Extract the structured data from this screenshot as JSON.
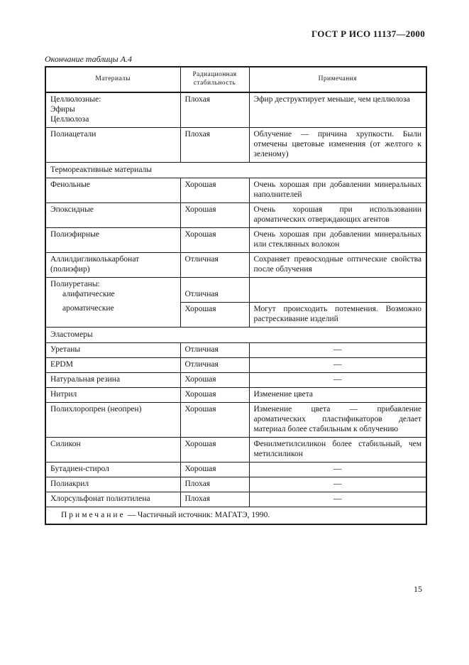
{
  "page": {
    "header": "ГОСТ Р ИСО 11137—2000",
    "caption": "Окончание таблицы А.4",
    "page_number": "15"
  },
  "table": {
    "columns": [
      "Материалы",
      "Радиационная стабильность",
      "Примечания"
    ],
    "rows": [
      {
        "type": "data",
        "material": [
          "Целлюлозные:",
          "Эфиры",
          "Целлюлоза"
        ],
        "stability": "Плохая",
        "remark": "Эфир деструктирует меньше, чем целлюлоза"
      },
      {
        "type": "data",
        "material": [
          "Полиацетали"
        ],
        "stability": "Плохая",
        "remark": "Облучение — причина хрупкости. Были отмечены цветовые изменения (от желтого к зеленому)"
      },
      {
        "type": "section",
        "label": "Термореактивные материалы"
      },
      {
        "type": "data",
        "material": [
          "Фенольные"
        ],
        "stability": "Хорошая",
        "remark": "Очень хорошая при добавлении минеральных наполнителей"
      },
      {
        "type": "data",
        "material": [
          "Эпоксидные"
        ],
        "stability": "Хорошая",
        "remark": "Очень хорошая при использовании ароматических отверждающих агентов"
      },
      {
        "type": "data",
        "material": [
          "Полиэфирные"
        ],
        "stability": "Хорошая",
        "remark": "Очень хорошая при добавлении минеральных или стеклянных волокон"
      },
      {
        "type": "data",
        "material": [
          "Аллилдигликолькарбонат",
          "(полиэфир)"
        ],
        "stability": "Отличная",
        "remark": "Сохраняет превосходные оптические свойства после облучения"
      },
      {
        "type": "group",
        "label": "Полиуретаны:",
        "subrows": [
          {
            "material": "алифатические",
            "stability": "Отличная",
            "remark": ""
          },
          {
            "material": "ароматические",
            "stability": "Хорошая",
            "remark": "Могут происходить потемнения. Возможно растрескивание изделий"
          }
        ]
      },
      {
        "type": "section",
        "label": "Эластомеры"
      },
      {
        "type": "data",
        "material": [
          "Уретаны"
        ],
        "stability": "Отличная",
        "remark": "—"
      },
      {
        "type": "data",
        "material": [
          "EPDM"
        ],
        "stability": "Отличная",
        "remark": "—"
      },
      {
        "type": "data",
        "material": [
          "Натуральная резина"
        ],
        "stability": "Хорошая",
        "remark": "—"
      },
      {
        "type": "data",
        "material": [
          "Нитрил"
        ],
        "stability": "Хорошая",
        "remark": "Изменение цвета"
      },
      {
        "type": "data",
        "material": [
          "Полихлоропрен (неопрен)"
        ],
        "stability": "Хорошая",
        "remark": "Изменение цвета — прибавление ароматических пластификаторов делает материал более стабильным к облучению"
      },
      {
        "type": "data",
        "material": [
          "Силикон"
        ],
        "stability": "Хорошая",
        "remark": "Фенилметилсиликон более стабильный, чем метилсиликон"
      },
      {
        "type": "data",
        "material": [
          "Бутадиен-стирол"
        ],
        "stability": "Хорошая",
        "remark": "—"
      },
      {
        "type": "data",
        "material": [
          "Полиакрил"
        ],
        "stability": "Плохая",
        "remark": "—"
      },
      {
        "type": "data",
        "material": [
          "Хлорсульфонат полиэтилена"
        ],
        "stability": "Плохая",
        "remark": "—"
      },
      {
        "type": "note",
        "label": "Примечание",
        "text": "— Частичный источник: МАГАТЭ, 1990."
      }
    ]
  }
}
